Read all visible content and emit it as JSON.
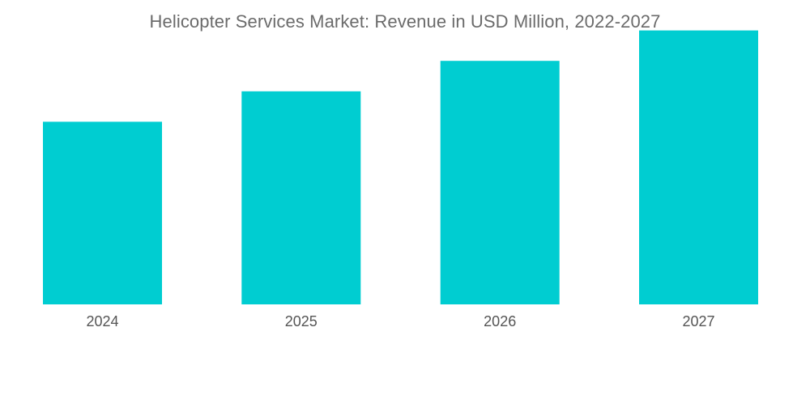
{
  "chart_data": {
    "type": "bar",
    "title": "Helicopter Services Market: Revenue in USD Million, 2022-2027",
    "categories": [
      "2024",
      "2025",
      "2026",
      "2027"
    ],
    "values": [
      60,
      70,
      80,
      90
    ],
    "xlabel": "",
    "ylabel": "",
    "ylim": [
      0,
      100
    ],
    "grid": false,
    "legend": "none",
    "bar_color": "#00cdd1"
  }
}
